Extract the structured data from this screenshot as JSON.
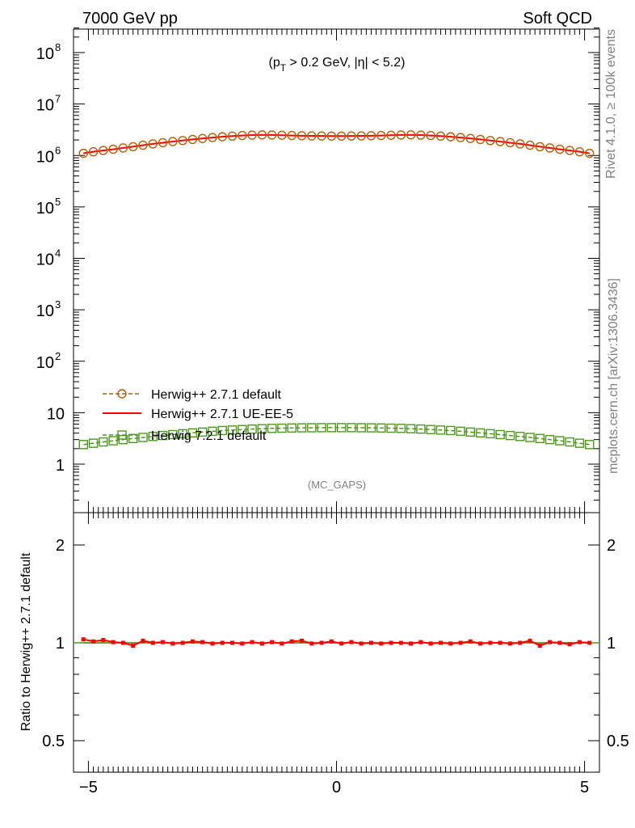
{
  "header": {
    "left": "7000 GeV pp",
    "right": "Soft QCD"
  },
  "side_labels": {
    "rivet": "Rivet 4.1.0, ≥ 100k events",
    "mcplots": "mcplots.cern.ch [arXiv:1306.3436]"
  },
  "plot_label": "(MC_GAPS)",
  "cut_label": {
    "open": "(p",
    "sub": "T",
    "rest": " > 0.2 GeV, |η| < 5.2)"
  },
  "colors": {
    "herwigpp_default": "#b85c00",
    "herwigpp_ue": "#ff0000",
    "herwig7": "#4a9a1a"
  },
  "chart_data": [
    {
      "type": "line",
      "title": "",
      "xlabel": "",
      "ylabel": "",
      "yscale": "log",
      "xlim": [
        -5.3,
        5.3
      ],
      "ylim": [
        0.2,
        300000000
      ],
      "yticks": [
        {
          "base": "1",
          "exp": ""
        },
        {
          "base": "10",
          "exp": ""
        },
        {
          "base": "10",
          "exp": "2"
        },
        {
          "base": "10",
          "exp": "3"
        },
        {
          "base": "10",
          "exp": "4"
        },
        {
          "base": "10",
          "exp": "5"
        },
        {
          "base": "10",
          "exp": "6"
        },
        {
          "base": "10",
          "exp": "7"
        },
        {
          "base": "10",
          "exp": "8"
        }
      ],
      "legend_position": "lower-left",
      "x": [
        -5.1,
        -4.9,
        -4.7,
        -4.5,
        -4.3,
        -4.1,
        -3.9,
        -3.7,
        -3.5,
        -3.3,
        -3.1,
        -2.9,
        -2.7,
        -2.5,
        -2.3,
        -2.1,
        -1.9,
        -1.7,
        -1.5,
        -1.3,
        -1.1,
        -0.9,
        -0.7,
        -0.5,
        -0.3,
        -0.1,
        0.1,
        0.3,
        0.5,
        0.7,
        0.9,
        1.1,
        1.3,
        1.5,
        1.7,
        1.9,
        2.1,
        2.3,
        2.5,
        2.7,
        2.9,
        3.1,
        3.3,
        3.5,
        3.7,
        3.9,
        4.1,
        4.3,
        4.5,
        4.7,
        4.9,
        5.1
      ],
      "series": [
        {
          "name": "Herwig++ 2.7.1 default",
          "style": "dashed-circles",
          "values": [
            1100000,
            1180000,
            1250000,
            1320000,
            1400000,
            1480000,
            1580000,
            1680000,
            1770000,
            1860000,
            1950000,
            2050000,
            2140000,
            2230000,
            2310000,
            2380000,
            2440000,
            2490000,
            2510000,
            2500000,
            2470000,
            2440000,
            2420000,
            2400000,
            2390000,
            2380000,
            2380000,
            2390000,
            2400000,
            2420000,
            2440000,
            2470000,
            2500000,
            2510000,
            2490000,
            2440000,
            2380000,
            2310000,
            2230000,
            2140000,
            2050000,
            1950000,
            1860000,
            1770000,
            1680000,
            1580000,
            1480000,
            1400000,
            1320000,
            1250000,
            1180000,
            1100000
          ]
        },
        {
          "name": "Herwig++ 2.7.1 UE-EE-5",
          "style": "solid",
          "values": [
            1100000,
            1180000,
            1250000,
            1320000,
            1400000,
            1480000,
            1580000,
            1680000,
            1770000,
            1860000,
            1950000,
            2050000,
            2140000,
            2230000,
            2310000,
            2380000,
            2440000,
            2490000,
            2510000,
            2500000,
            2470000,
            2440000,
            2420000,
            2400000,
            2390000,
            2380000,
            2380000,
            2390000,
            2400000,
            2420000,
            2440000,
            2470000,
            2500000,
            2510000,
            2490000,
            2440000,
            2380000,
            2310000,
            2230000,
            2140000,
            2050000,
            1950000,
            1860000,
            1770000,
            1680000,
            1580000,
            1480000,
            1400000,
            1320000,
            1250000,
            1180000,
            1100000
          ]
        },
        {
          "name": "Herwig 7.2.1 default",
          "style": "dashed-squares",
          "values": [
            2.4,
            2.55,
            2.7,
            2.85,
            3.0,
            3.15,
            3.3,
            3.45,
            3.6,
            3.75,
            3.9,
            4.05,
            4.2,
            4.35,
            4.5,
            4.6,
            4.7,
            4.8,
            4.88,
            4.95,
            5.0,
            5.05,
            5.08,
            5.1,
            5.12,
            5.12,
            5.12,
            5.12,
            5.1,
            5.08,
            5.05,
            5.0,
            4.95,
            4.88,
            4.8,
            4.7,
            4.6,
            4.5,
            4.35,
            4.2,
            4.05,
            3.9,
            3.75,
            3.6,
            3.45,
            3.3,
            3.15,
            3.0,
            2.85,
            2.7,
            2.55,
            2.4
          ]
        }
      ]
    },
    {
      "type": "line",
      "title": "",
      "xlabel": "",
      "ylabel": "Ratio to Herwig++ 2.7.1 default",
      "yscale": "log",
      "xlim": [
        -5.3,
        5.3
      ],
      "ylim": [
        0.4,
        2.5
      ],
      "yticks": [
        "0.5",
        "1",
        "2"
      ],
      "xticks": [
        "−5",
        "0",
        "5"
      ],
      "x": [
        -5.1,
        -4.9,
        -4.7,
        -4.5,
        -4.3,
        -4.1,
        -3.9,
        -3.7,
        -3.5,
        -3.3,
        -3.1,
        -2.9,
        -2.7,
        -2.5,
        -2.3,
        -2.1,
        -1.9,
        -1.7,
        -1.5,
        -1.3,
        -1.1,
        -0.9,
        -0.7,
        -0.5,
        -0.3,
        -0.1,
        0.1,
        0.3,
        0.5,
        0.7,
        0.9,
        1.1,
        1.3,
        1.5,
        1.7,
        1.9,
        2.1,
        2.3,
        2.5,
        2.7,
        2.9,
        3.1,
        3.3,
        3.5,
        3.7,
        3.9,
        4.1,
        4.3,
        4.5,
        4.7,
        4.9,
        5.1
      ],
      "series": [
        {
          "name": "Herwig++ 2.7.1 default",
          "values": [
            1,
            1,
            1,
            1,
            1,
            1,
            1,
            1,
            1,
            1,
            1,
            1,
            1,
            1,
            1,
            1,
            1,
            1,
            1,
            1,
            1,
            1,
            1,
            1,
            1,
            1,
            1,
            1,
            1,
            1,
            1,
            1,
            1,
            1,
            1,
            1,
            1,
            1,
            1,
            1,
            1,
            1,
            1,
            1,
            1,
            1,
            1,
            1,
            1,
            1,
            1,
            1
          ]
        },
        {
          "name": "Herwig++ 2.7.1 UE-EE-5",
          "values": [
            1.025,
            1.01,
            1.02,
            1.005,
            1.0,
            0.98,
            1.015,
            1.0,
            1.005,
            0.995,
            1.0,
            1.01,
            1.005,
            0.995,
            1.0,
            1.0,
            0.995,
            1.005,
            0.995,
            1.005,
            0.995,
            1.01,
            1.015,
            0.995,
            1.0,
            1.01,
            0.995,
            1.005,
            0.995,
            1.0,
            0.995,
            1.0,
            1.0,
            0.995,
            1.005,
            0.995,
            1.0,
            0.995,
            1.0,
            1.01,
            0.995,
            1.0,
            1.0,
            0.995,
            1.0,
            1.015,
            0.98,
            1.005,
            1.0,
            0.99,
            1.005,
            1.0
          ]
        }
      ]
    }
  ]
}
